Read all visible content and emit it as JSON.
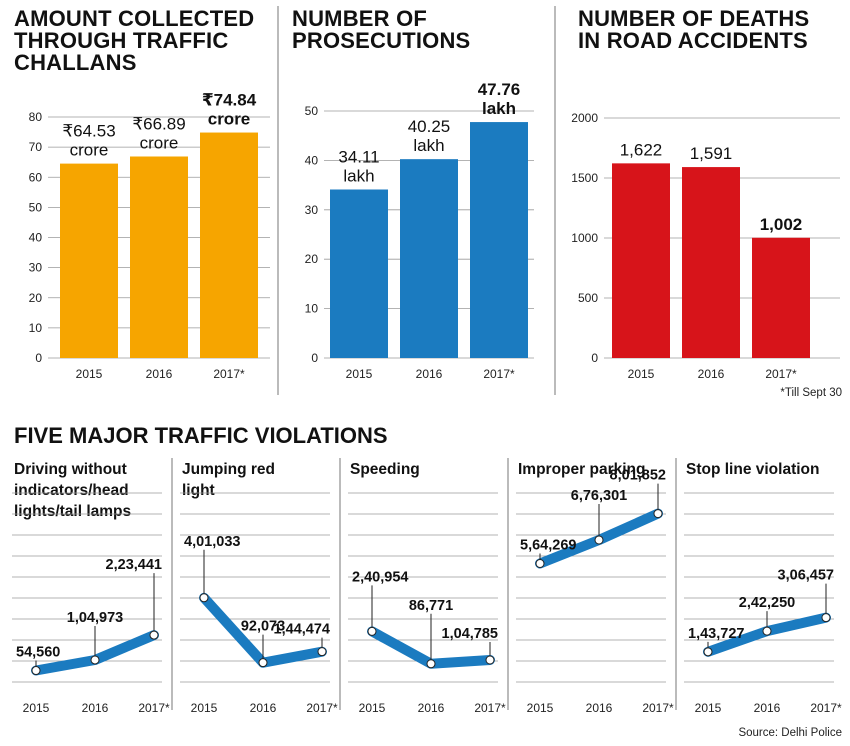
{
  "chart_data": [
    {
      "type": "bar",
      "title": [
        "AMOUNT COLLECTED",
        "THROUGH TRAFFIC",
        "CHALLANS"
      ],
      "categories": [
        "2015",
        "2016",
        "2017*"
      ],
      "values": [
        64.53,
        66.89,
        74.84
      ],
      "value_labels": [
        [
          "₹64.53",
          "crore"
        ],
        [
          "₹66.89",
          "crore"
        ],
        [
          "₹74.84",
          "crore"
        ]
      ],
      "highlight_last": true,
      "ylim": [
        0,
        80
      ],
      "yticks": [
        0,
        10,
        20,
        30,
        40,
        50,
        60,
        70,
        80
      ],
      "color": "#f6a500"
    },
    {
      "type": "bar",
      "title": [
        "NUMBER OF",
        "PROSECUTIONS"
      ],
      "categories": [
        "2015",
        "2016",
        "2017*"
      ],
      "values": [
        34.11,
        40.25,
        47.76
      ],
      "value_labels": [
        [
          "34.11",
          "lakh"
        ],
        [
          "40.25",
          "lakh"
        ],
        [
          "47.76",
          "lakh"
        ]
      ],
      "highlight_last": true,
      "ylim": [
        0,
        50
      ],
      "yticks": [
        0,
        10,
        20,
        30,
        40,
        50
      ],
      "color": "#1b7bc0"
    },
    {
      "type": "bar",
      "title": [
        "NUMBER OF DEATHS",
        "IN ROAD ACCIDENTS"
      ],
      "categories": [
        "2015",
        "2016",
        "2017*"
      ],
      "values": [
        1622,
        1591,
        1002
      ],
      "value_labels": [
        [
          "1,622"
        ],
        [
          "1,591"
        ],
        [
          "1,002"
        ]
      ],
      "highlight_last": true,
      "ylim": [
        0,
        2000
      ],
      "yticks": [
        0,
        500,
        1000,
        1500,
        2000
      ],
      "color": "#d7141a",
      "footnote": "*Till Sept 30"
    }
  ],
  "violations": {
    "title": "FIVE MAJOR TRAFFIC VIOLATIONS",
    "categories": [
      "2015",
      "2016",
      "2017*"
    ],
    "ylim": [
      0,
      900000
    ],
    "color": "#1b7bc0",
    "panels": [
      {
        "title": [
          "Driving without",
          "indicators/head",
          "lights/tail lamps"
        ],
        "values": [
          54560,
          104973,
          223441
        ],
        "labels": [
          "54,560",
          "1,04,973",
          "2,23,441"
        ]
      },
      {
        "title": [
          "Jumping red",
          "light"
        ],
        "values": [
          401033,
          92073,
          144474
        ],
        "labels": [
          "4,01,033",
          "92,073",
          "1,44,474"
        ]
      },
      {
        "title": [
          "Speeding"
        ],
        "values": [
          240954,
          86771,
          104785
        ],
        "labels": [
          "2,40,954",
          "86,771",
          "1,04,785"
        ]
      },
      {
        "title": [
          "Improper parking"
        ],
        "values": [
          564269,
          676301,
          801852
        ],
        "labels": [
          "5,64,269",
          "6,76,301",
          "8,01,852"
        ]
      },
      {
        "title": [
          "Stop line violation"
        ],
        "values": [
          143727,
          242250,
          306457
        ],
        "labels": [
          "1,43,727",
          "2,42,250",
          "3,06,457"
        ]
      }
    ]
  },
  "source": "Source: Delhi Police"
}
